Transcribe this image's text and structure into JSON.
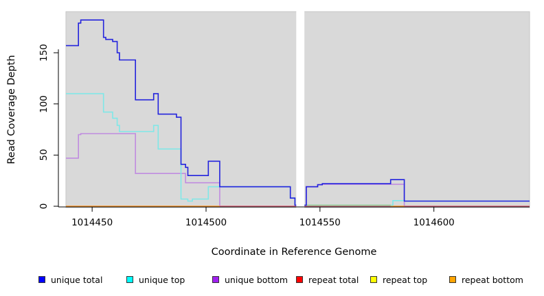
{
  "figure": {
    "background": "#ffffff",
    "plot_background": "#d9d9d9",
    "gap_band_color": "#ffffff"
  },
  "chart_data": {
    "type": "line",
    "step": true,
    "title": "",
    "xlabel": "Coordinate in Reference Genome",
    "ylabel": "Read Coverage Depth",
    "xlim": [
      1014438.5,
      1014642
    ],
    "ylim": [
      0,
      190
    ],
    "x_ticks": [
      1014450,
      1014500,
      1014550,
      1014600
    ],
    "x_tick_labels": [
      "1014450",
      "1014500",
      "1014550",
      "1014600"
    ],
    "y_ticks": [
      0,
      50,
      100,
      150
    ],
    "y_tick_labels": [
      "0",
      "50",
      "100",
      "150"
    ],
    "grid": false,
    "legend_position": "bottom",
    "gap_region": {
      "start": 1014539.6,
      "end": 1014543.2
    },
    "series": [
      {
        "name": "unique total",
        "color": "#0000FF",
        "line_color": "#2222dd",
        "end": 1014642,
        "steps": [
          [
            1014438.5,
            157
          ],
          [
            1014444,
            179
          ],
          [
            1014445,
            182
          ],
          [
            1014455,
            165
          ],
          [
            1014456,
            163
          ],
          [
            1014459,
            161
          ],
          [
            1014461,
            150
          ],
          [
            1014462,
            143
          ],
          [
            1014469,
            104
          ],
          [
            1014477,
            110
          ],
          [
            1014479,
            90
          ],
          [
            1014487,
            87
          ],
          [
            1014489,
            41
          ],
          [
            1014491,
            38
          ],
          [
            1014492,
            30
          ],
          [
            1014501,
            44
          ],
          [
            1014506,
            19
          ],
          [
            1014537,
            8
          ],
          [
            1014539,
            1
          ],
          [
            1014544,
            19
          ],
          [
            1014549,
            21
          ],
          [
            1014551,
            22
          ],
          [
            1014581,
            26
          ],
          [
            1014587,
            5
          ]
        ]
      },
      {
        "name": "unique top",
        "color": "#00FFFF",
        "line_color": "#7fe8e8",
        "end": 1014642,
        "steps": [
          [
            1014438.5,
            110
          ],
          [
            1014455,
            92
          ],
          [
            1014459,
            86
          ],
          [
            1014461,
            79
          ],
          [
            1014462,
            73
          ],
          [
            1014477,
            79
          ],
          [
            1014479,
            56
          ],
          [
            1014489,
            7
          ],
          [
            1014492,
            5
          ],
          [
            1014494,
            7
          ],
          [
            1014501,
            19
          ],
          [
            1014537,
            8
          ],
          [
            1014539,
            1
          ],
          [
            1014582,
            5.5
          ],
          [
            1014587,
            5
          ]
        ]
      },
      {
        "name": "unique bottom",
        "color": "#A020F0",
        "line_color": "#c08ce0",
        "end": 1014642,
        "steps": [
          [
            1014438.5,
            47
          ],
          [
            1014444,
            70
          ],
          [
            1014445,
            71
          ],
          [
            1014469,
            32
          ],
          [
            1014491,
            23
          ],
          [
            1014506,
            0
          ],
          [
            1014544,
            19
          ],
          [
            1014549,
            21
          ],
          [
            1014551,
            21.5
          ],
          [
            1014587,
            0
          ]
        ]
      },
      {
        "name": "repeat total",
        "color": "#FF0000",
        "line_color": "#e06880",
        "end": 1014642,
        "steps": [
          [
            1014438.5,
            0
          ]
        ]
      },
      {
        "name": "repeat top",
        "color": "#FFFF00",
        "line_color": "#e8e850",
        "end": 1014642,
        "steps": [
          [
            1014438.5,
            0
          ],
          [
            1014543,
            1
          ],
          [
            1014581,
            0
          ]
        ]
      },
      {
        "name": "repeat bottom",
        "color": "#FFA500",
        "line_color": "#ffa030",
        "end": 1014642,
        "steps": [
          [
            1014438.5,
            0
          ]
        ]
      }
    ]
  },
  "legend": {
    "items": [
      {
        "label": "unique total",
        "color": "#0000FF"
      },
      {
        "label": "unique top",
        "color": "#00FFFF"
      },
      {
        "label": "unique bottom",
        "color": "#A020F0"
      },
      {
        "label": "repeat total",
        "color": "#FF0000"
      },
      {
        "label": "repeat top",
        "color": "#FFFF00"
      },
      {
        "label": "repeat bottom",
        "color": "#FFA500"
      }
    ]
  }
}
